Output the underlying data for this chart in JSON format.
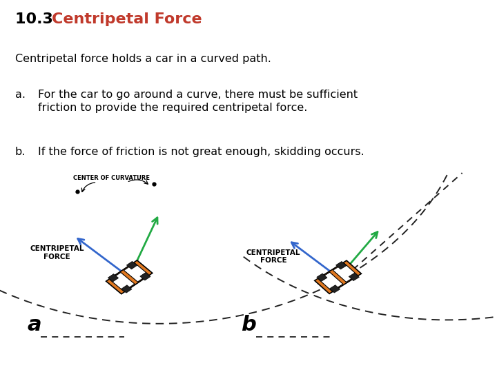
{
  "title_prefix": "10.3 ",
  "title_colored": "Centripetal Force",
  "title_prefix_color": "#000000",
  "title_colored_color": "#c0392b",
  "title_fontsize": 16,
  "subtitle": "Centripetal force holds a car in a curved path.",
  "item_a_label": "a.",
  "item_a_text": "For the car to go around a curve, there must be sufficient\nfriction to provide the required centripetal force.",
  "item_b_label": "b.",
  "item_b_text": "If the force of friction is not great enough, skidding occurs.",
  "text_fontsize": 11.5,
  "body_color": "#000000",
  "background_color": "#ffffff",
  "label_a": "a",
  "label_b": "b",
  "label_fontsize": 22,
  "center_of_curvature_label": "CENTER OF CURVATURE",
  "centripetal_force_label": "CENTRIPETAL\nFORCE",
  "arrow_blue_color": "#3366cc",
  "arrow_green_color": "#22aa44",
  "dashed_color": "#222222",
  "car_body_color": "#e07820",
  "car_outline_color": "#000000",
  "car_stripe_color": "#ffffff"
}
